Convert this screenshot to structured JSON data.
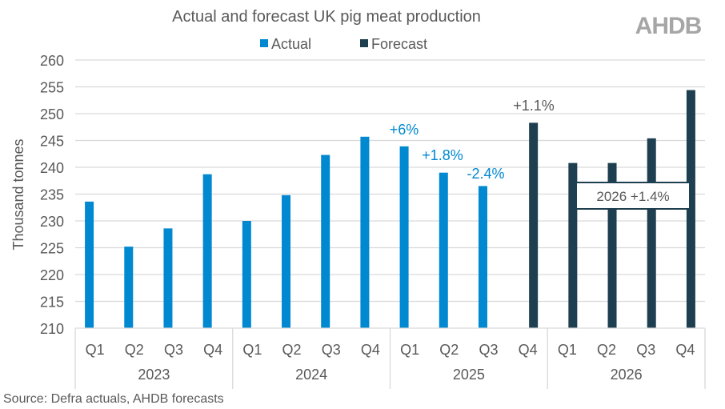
{
  "logo": "AHDB",
  "source": "Source: Defra actuals, AHDB forecasts",
  "colors": {
    "actual": "#0088D1",
    "forecast": "#1E3F4F",
    "grid": "#D9D9D9",
    "text": "#595959",
    "logo": "#A6A6A6"
  },
  "chart_data": {
    "type": "bar",
    "title": "Actual and forecast UK pig meat production",
    "ylabel": "Thousand tonnes",
    "xlabel": "",
    "ylim": [
      210,
      260
    ],
    "yticks": [
      210,
      215,
      220,
      225,
      230,
      235,
      240,
      245,
      250,
      255,
      260
    ],
    "grid": true,
    "legend_position": "top",
    "years": [
      "2023",
      "2024",
      "2025",
      "2026"
    ],
    "categories": [
      "Q1",
      "Q2",
      "Q3",
      "Q4",
      "Q1",
      "Q2",
      "Q3",
      "Q4",
      "Q1",
      "Q2",
      "Q3",
      "Q4",
      "Q1",
      "Q2",
      "Q3",
      "Q4"
    ],
    "series": [
      {
        "name": "Actual",
        "values": [
          233.6,
          225.2,
          228.6,
          238.7,
          230.0,
          234.8,
          242.3,
          245.7,
          243.9,
          239.0,
          236.5,
          null,
          null,
          null,
          null,
          null
        ]
      },
      {
        "name": "Forecast",
        "values": [
          null,
          null,
          null,
          null,
          null,
          null,
          null,
          null,
          null,
          null,
          null,
          248.3,
          240.8,
          240.8,
          245.4,
          254.4
        ]
      }
    ],
    "annotations": [
      {
        "text": "+6%",
        "category_index": 8,
        "color": "actual"
      },
      {
        "text": "+1.8%",
        "category_index": 9,
        "color": "actual"
      },
      {
        "text": "-2.4%",
        "category_index": 10,
        "color": "actual"
      },
      {
        "text": "+1.1%",
        "category_index": 11,
        "color": "text"
      },
      {
        "text": "2026 +1.4%",
        "boxed": true
      }
    ]
  }
}
